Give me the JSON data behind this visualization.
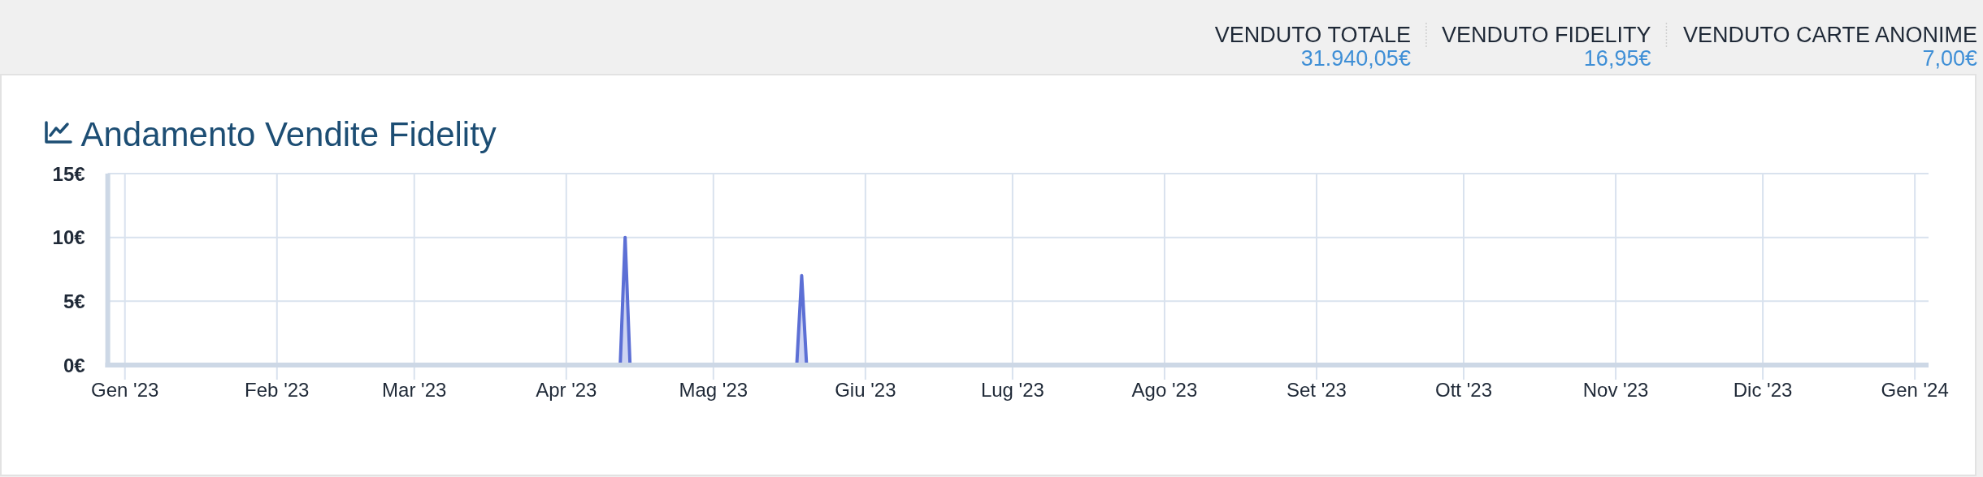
{
  "chart_data": [
    {
      "type": "other",
      "annotations": [
        "VENDUTO TOTALE",
        "31.940,05€",
        "VENDUTO FIDELITY",
        "16,95€",
        "VENDUTO CARTE ANONIME",
        "7,00€"
      ]
    },
    {
      "type": "area",
      "title": "Andamento Vendite Fidelity",
      "x": [
        "2023-01-01",
        "2023-04-12",
        "2023-04-13",
        "2023-04-14",
        "2023-05-18",
        "2023-05-19",
        "2023-05-20",
        "2023-12-31"
      ],
      "series": [
        {
          "color": "#5c6fd5",
          "values": [
            0,
            0,
            10,
            0,
            0,
            7,
            0,
            0
          ]
        }
      ],
      "xlim": [
        "2022-12-28T12:00",
        "2024-01-03T19:00"
      ],
      "xticks": [
        {
          "value": "2023-01-01",
          "label": "Gen '23"
        },
        {
          "value": "2023-02-01",
          "label": "Feb '23"
        },
        {
          "value": "2023-03-01",
          "label": "Mar '23"
        },
        {
          "value": "2023-04-01",
          "label": "Apr '23"
        },
        {
          "value": "2023-05-01",
          "label": "Mag '23"
        },
        {
          "value": "2023-06-01",
          "label": "Giu '23"
        },
        {
          "value": "2023-07-01",
          "label": "Lug '23"
        },
        {
          "value": "2023-08-01",
          "label": "Ago '23"
        },
        {
          "value": "2023-09-01",
          "label": "Set '23"
        },
        {
          "value": "2023-10-01",
          "label": "Ott '23"
        },
        {
          "value": "2023-11-01",
          "label": "Nov '23"
        },
        {
          "value": "2023-12-01",
          "label": "Dic '23"
        },
        {
          "value": "2024-01-01",
          "label": "Gen '24"
        }
      ],
      "ylim": [
        0,
        15
      ],
      "yticks": [
        {
          "value": 0,
          "label": "0€"
        },
        {
          "value": 5,
          "label": "5€"
        },
        {
          "value": 10,
          "label": "10€"
        },
        {
          "value": 15,
          "label": "15€"
        }
      ],
      "grid": true
    }
  ]
}
